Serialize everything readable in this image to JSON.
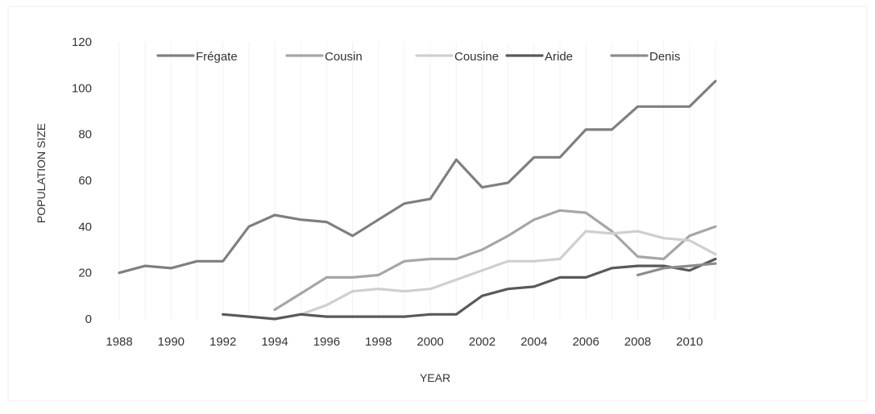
{
  "chart_data": {
    "type": "line",
    "title": "",
    "xlabel": "YEAR",
    "ylabel": "POPULATION SIZE",
    "x": [
      1988,
      1989,
      1990,
      1991,
      1992,
      1993,
      1994,
      1995,
      1996,
      1997,
      1998,
      1999,
      2000,
      2001,
      2002,
      2003,
      2004,
      2005,
      2006,
      2007,
      2008,
      2009,
      2010,
      2011
    ],
    "xticks": [
      "1988",
      "1990",
      "1992",
      "1994",
      "1996",
      "1998",
      "2000",
      "2002",
      "2004",
      "2006",
      "2008",
      "2010"
    ],
    "xlim": [
      1988,
      2011
    ],
    "ylim": [
      0,
      120
    ],
    "yticks": [
      "0",
      "20",
      "40",
      "60",
      "80",
      "100",
      "120"
    ],
    "grid": "off",
    "legend_position": "top",
    "series": [
      {
        "name": "Frégate",
        "color": "#7f7f7f",
        "values": [
          20,
          23,
          22,
          25,
          25,
          40,
          45,
          43,
          42,
          36,
          43,
          50,
          52,
          69,
          57,
          59,
          70,
          70,
          82,
          82,
          92,
          92,
          92,
          103
        ]
      },
      {
        "name": "Cousin",
        "color": "#a6a6a6",
        "values": [
          null,
          null,
          null,
          null,
          null,
          null,
          4,
          11,
          18,
          18,
          19,
          25,
          26,
          26,
          30,
          36,
          43,
          47,
          46,
          38,
          27,
          26,
          36,
          40
        ]
      },
      {
        "name": "Cousine",
        "color": "#cfcfcf",
        "values": [
          null,
          null,
          null,
          null,
          null,
          null,
          null,
          2,
          6,
          12,
          13,
          12,
          13,
          17,
          21,
          25,
          25,
          26,
          38,
          37,
          38,
          35,
          34,
          28
        ]
      },
      {
        "name": "Aride",
        "color": "#595959",
        "values": [
          null,
          null,
          null,
          null,
          2,
          1,
          0,
          2,
          1,
          1,
          1,
          1,
          2,
          2,
          10,
          13,
          14,
          18,
          18,
          22,
          23,
          23,
          21,
          26
        ]
      },
      {
        "name": "Denis",
        "color": "#8c8c8c",
        "values": [
          null,
          null,
          null,
          null,
          null,
          null,
          null,
          null,
          null,
          null,
          null,
          null,
          null,
          null,
          null,
          null,
          null,
          null,
          null,
          null,
          19,
          22,
          23,
          24
        ]
      }
    ]
  }
}
